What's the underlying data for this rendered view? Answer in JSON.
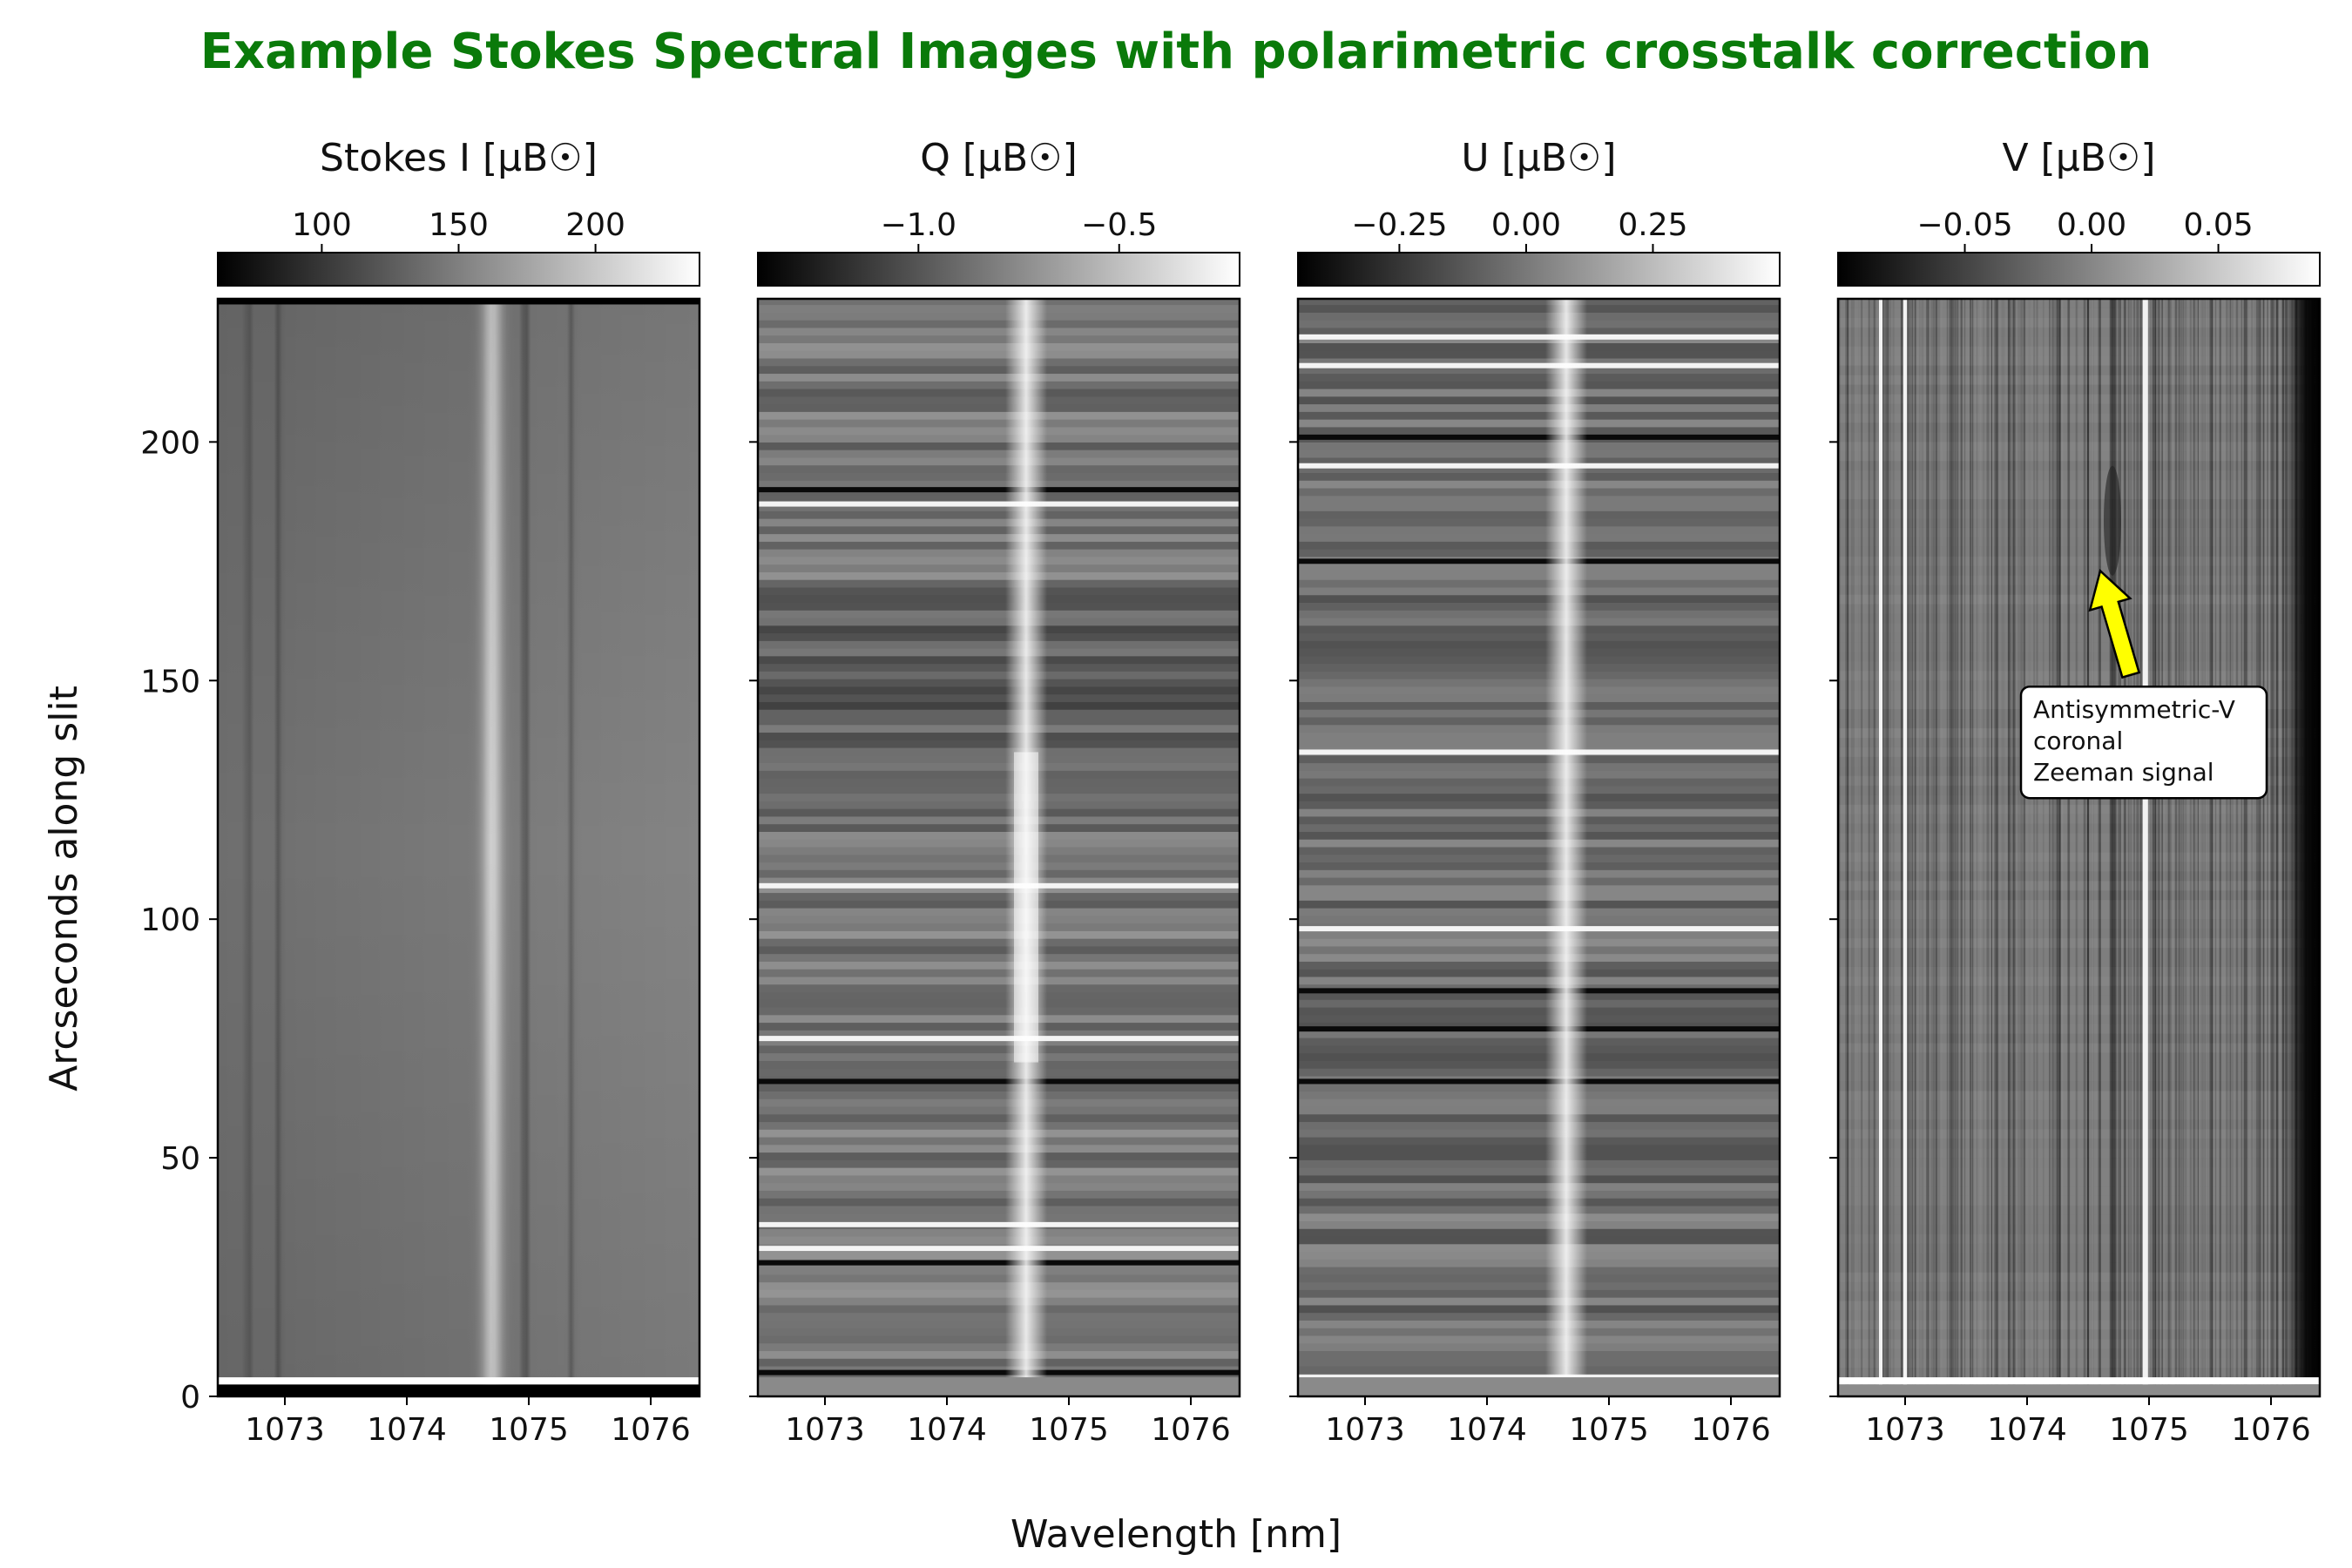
{
  "figure": {
    "title": "Example Stokes Spectral Images with polarimetric crosstalk correction",
    "title_color": "#0a7a0a",
    "xlabel": "Wavelength [nm]",
    "ylabel": "Arcseconds along slit",
    "annotation": {
      "lines": [
        "Antisymmetric-V",
        "coronal",
        "Zeeman signal"
      ],
      "arrow_color": "#ffff00",
      "panel": 3,
      "box_at": {
        "x": 1074.95,
        "y": 125
      },
      "arrow_tip": {
        "x": 1074.6,
        "y": 173
      },
      "arrow_tail": {
        "x": 1074.85,
        "y": 153
      }
    }
  },
  "chart_data": [
    {
      "type": "heatmap",
      "colormap": "gray",
      "colorbar_label": "Stokes I [μB☉]",
      "colorbar_range": [
        62,
        238
      ],
      "colorbar_ticks": [
        100,
        150,
        200
      ],
      "colorbar_ticklabels": [
        "100",
        "150",
        "200"
      ],
      "xlim": [
        1072.45,
        1076.4
      ],
      "ylim": [
        0,
        230
      ],
      "xticks": [
        1073,
        1074,
        1075,
        1076
      ],
      "xticklabels": [
        "1073",
        "1074",
        "1075",
        "1076"
      ],
      "yticks": [
        0,
        50,
        100,
        150,
        200
      ],
      "yticklabels": [
        "0",
        "50",
        "100",
        "150",
        "200"
      ],
      "features": {
        "emission_line_nm": 1074.7,
        "absorption_lines_nm": [
          1072.7,
          1072.95,
          1074.97,
          1075.35
        ],
        "background_level": 105,
        "peak_level": 200,
        "bottom_rows": [
          {
            "y_from": 0,
            "y_to": 2.5,
            "value": "black"
          },
          {
            "y_from": 2.5,
            "y_to": 4,
            "value": "white"
          }
        ],
        "top_rows": [
          {
            "y_from": 229,
            "y_to": 230,
            "value": "black"
          }
        ]
      }
    },
    {
      "type": "heatmap",
      "colormap": "gray",
      "colorbar_label": "Q [μB☉]",
      "colorbar_range": [
        -1.4,
        -0.2
      ],
      "colorbar_ticks": [
        -1.0,
        -0.5
      ],
      "colorbar_ticklabels": [
        "−1.0",
        "−0.5"
      ],
      "xlim": [
        1072.45,
        1076.4
      ],
      "ylim": [
        0,
        230
      ],
      "xticks": [
        1073,
        1074,
        1075,
        1076
      ],
      "xticklabels": [
        "1073",
        "1074",
        "1075",
        "1076"
      ],
      "features": {
        "emission_line_nm": 1074.65,
        "bright_rows_y": [
          187,
          107,
          75,
          36,
          31
        ],
        "dark_rows_y": [
          190,
          66,
          28,
          5
        ]
      }
    },
    {
      "type": "heatmap",
      "colormap": "gray",
      "colorbar_label": "U [μB☉]",
      "colorbar_range": [
        -0.45,
        0.5
      ],
      "colorbar_ticks": [
        -0.25,
        0.0,
        0.25
      ],
      "colorbar_ticklabels": [
        "−0.25",
        "0.00",
        "0.25"
      ],
      "xlim": [
        1072.45,
        1076.4
      ],
      "ylim": [
        0,
        230
      ],
      "xticks": [
        1073,
        1074,
        1075,
        1076
      ],
      "xticklabels": [
        "1073",
        "1074",
        "1075",
        "1076"
      ],
      "features": {
        "emission_line_nm": 1074.65,
        "bright_rows_y": [
          222,
          216,
          195,
          135,
          98,
          4
        ],
        "dark_rows_y": [
          201,
          175,
          85,
          77,
          66
        ]
      }
    },
    {
      "type": "heatmap",
      "colormap": "gray",
      "colorbar_label": "V [μB☉]",
      "colorbar_range": [
        -0.1,
        0.09
      ],
      "colorbar_ticks": [
        -0.05,
        0.0,
        0.05
      ],
      "colorbar_ticklabels": [
        "−0.05",
        "0.00",
        "0.05"
      ],
      "xlim": [
        1072.45,
        1076.4
      ],
      "ylim": [
        0,
        230
      ],
      "xticks": [
        1073,
        1074,
        1075,
        1076
      ],
      "xticklabels": [
        "1073",
        "1074",
        "1075",
        "1076"
      ],
      "features": {
        "bright_columns_nm": [
          1072.8,
          1073.0,
          1074.97
        ],
        "dark_region_nm": [
          1076.1,
          1076.4
        ],
        "dark_blob": {
          "x": 1074.7,
          "y_from": 172,
          "y_to": 195
        },
        "bottom_rows": [
          {
            "y_from": 2.5,
            "y_to": 4,
            "value": "white"
          }
        ]
      }
    }
  ]
}
